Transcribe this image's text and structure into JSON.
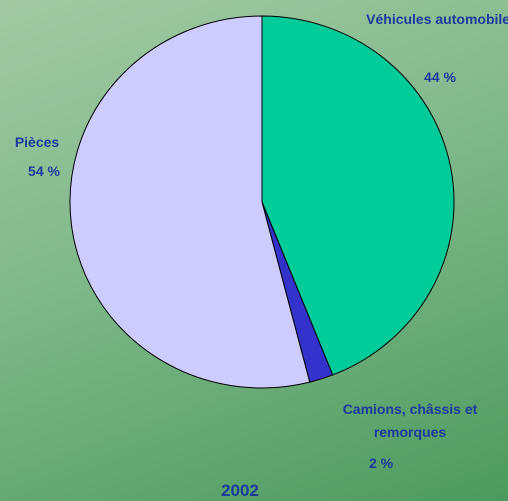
{
  "chart_data": {
    "type": "pie",
    "title": "2002",
    "categories": [
      "Véhicules automobiles",
      "Camions, châssis et remorques",
      "Pièces"
    ],
    "values": [
      44,
      2,
      54
    ],
    "value_labels": [
      "44 %",
      "2 %",
      "54 %"
    ],
    "colors": [
      "#00cc99",
      "#3333cc",
      "#ccccff"
    ]
  }
}
